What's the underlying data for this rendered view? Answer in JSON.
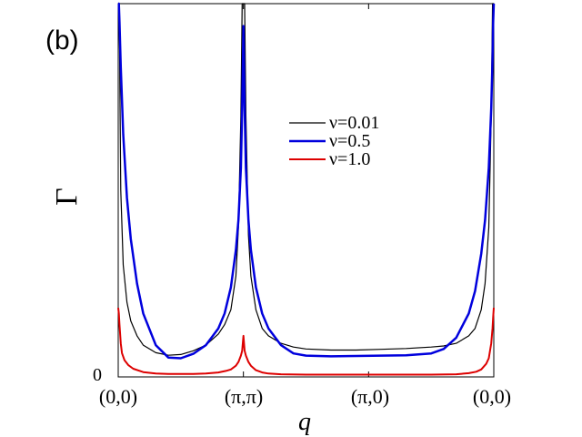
{
  "chart_data": {
    "type": "line",
    "panel_label": "(b)",
    "xlabel": "q",
    "ylabel": "Γ",
    "y_tick_labels": [
      "0"
    ],
    "x_tick_labels": [
      "(0,0)",
      "(π,π)",
      "(π,0)",
      "(0,0)"
    ],
    "x_ticks": [
      0,
      1,
      2,
      3
    ],
    "xlim": [
      0,
      3
    ],
    "ylim": [
      0,
      1
    ],
    "grid": false,
    "legend_position": "upper-right-center",
    "series": [
      {
        "name": "ν=0.01",
        "color": "#000000",
        "x": [
          0.0,
          0.005,
          0.01,
          0.02,
          0.04,
          0.07,
          0.1,
          0.15,
          0.2,
          0.3,
          0.4,
          0.5,
          0.6,
          0.7,
          0.8,
          0.85,
          0.9,
          0.94,
          0.96,
          0.98,
          0.99,
          1.0,
          1.01,
          1.02,
          1.04,
          1.06,
          1.1,
          1.15,
          1.2,
          1.3,
          1.4,
          1.5,
          1.7,
          1.9,
          2.1,
          2.3,
          2.5,
          2.6,
          2.7,
          2.8,
          2.85,
          2.9,
          2.93,
          2.96,
          2.98,
          2.99,
          2.995,
          3.0
        ],
        "y": [
          1.0,
          1.0,
          0.9,
          0.5,
          0.3,
          0.2,
          0.15,
          0.11,
          0.085,
          0.065,
          0.058,
          0.06,
          0.07,
          0.085,
          0.115,
          0.14,
          0.18,
          0.27,
          0.4,
          0.7,
          1.0,
          1.0,
          1.0,
          0.7,
          0.38,
          0.27,
          0.18,
          0.13,
          0.11,
          0.09,
          0.08,
          0.075,
          0.072,
          0.072,
          0.074,
          0.076,
          0.08,
          0.083,
          0.09,
          0.11,
          0.13,
          0.18,
          0.25,
          0.4,
          0.7,
          1.0,
          1.0,
          1.0
        ]
      },
      {
        "name": "ν=0.5",
        "color": "#0000dd",
        "x": [
          0.0,
          0.005,
          0.01,
          0.02,
          0.04,
          0.07,
          0.1,
          0.15,
          0.2,
          0.3,
          0.4,
          0.5,
          0.6,
          0.7,
          0.8,
          0.85,
          0.9,
          0.94,
          0.96,
          0.98,
          0.99,
          1.0,
          1.01,
          1.02,
          1.04,
          1.06,
          1.1,
          1.15,
          1.2,
          1.3,
          1.4,
          1.5,
          1.7,
          1.9,
          2.1,
          2.3,
          2.5,
          2.6,
          2.7,
          2.8,
          2.85,
          2.9,
          2.93,
          2.96,
          2.98,
          2.99,
          2.995,
          3.0
        ],
        "y": [
          1.0,
          1.0,
          0.95,
          0.83,
          0.65,
          0.48,
          0.37,
          0.25,
          0.17,
          0.085,
          0.052,
          0.05,
          0.062,
          0.085,
          0.13,
          0.17,
          0.24,
          0.34,
          0.42,
          0.56,
          0.72,
          0.94,
          0.72,
          0.56,
          0.42,
          0.34,
          0.24,
          0.17,
          0.13,
          0.085,
          0.063,
          0.057,
          0.055,
          0.056,
          0.057,
          0.058,
          0.063,
          0.075,
          0.105,
          0.17,
          0.23,
          0.33,
          0.42,
          0.56,
          0.72,
          0.85,
          0.95,
          1.0
        ]
      },
      {
        "name": "ν=1.0",
        "color": "#dd0000",
        "x": [
          0.0,
          0.005,
          0.01,
          0.02,
          0.03,
          0.05,
          0.08,
          0.12,
          0.2,
          0.3,
          0.4,
          0.5,
          0.6,
          0.7,
          0.8,
          0.86,
          0.9,
          0.94,
          0.96,
          0.98,
          0.99,
          1.0,
          1.01,
          1.02,
          1.04,
          1.06,
          1.1,
          1.15,
          1.2,
          1.3,
          1.5,
          1.7,
          1.9,
          2.1,
          2.3,
          2.5,
          2.7,
          2.8,
          2.86,
          2.9,
          2.94,
          2.96,
          2.98,
          2.99,
          2.995,
          3.0
        ],
        "y": [
          0.185,
          0.17,
          0.14,
          0.09,
          0.064,
          0.045,
          0.032,
          0.022,
          0.013,
          0.009,
          0.008,
          0.008,
          0.008,
          0.009,
          0.012,
          0.016,
          0.02,
          0.03,
          0.04,
          0.057,
          0.07,
          0.11,
          0.07,
          0.057,
          0.04,
          0.03,
          0.018,
          0.012,
          0.009,
          0.007,
          0.006,
          0.006,
          0.006,
          0.006,
          0.006,
          0.006,
          0.007,
          0.01,
          0.014,
          0.02,
          0.035,
          0.05,
          0.09,
          0.13,
          0.16,
          0.185
        ]
      }
    ]
  }
}
